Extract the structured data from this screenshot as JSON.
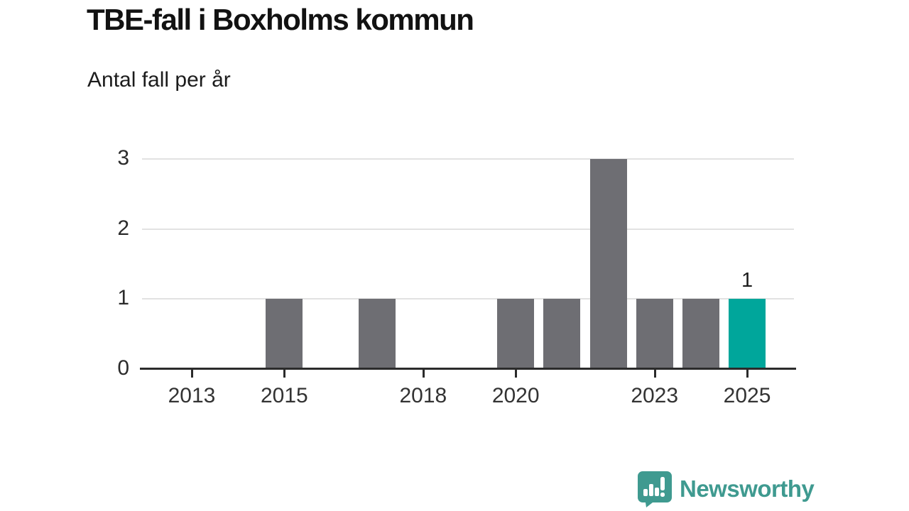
{
  "header": {
    "title": "TBE-fall i Boxholms kommun",
    "subtitle": "Antal fall per år"
  },
  "chart_data": {
    "type": "bar",
    "title": "TBE-fall i Boxholms kommun",
    "subtitle": "Antal fall per år",
    "xlabel": "",
    "ylabel": "Antal fall per år",
    "x": [
      2013,
      2014,
      2015,
      2016,
      2017,
      2018,
      2019,
      2020,
      2021,
      2022,
      2023,
      2024,
      2025
    ],
    "values": [
      0,
      0,
      1,
      0,
      1,
      0,
      0,
      1,
      1,
      3,
      1,
      1,
      1
    ],
    "highlight_index": 12,
    "ylim": [
      0,
      3
    ],
    "yticks": [
      0,
      1,
      2,
      3
    ],
    "xtick_labels": [
      "2013",
      "2015",
      "2018",
      "2020",
      "2023",
      "2025"
    ],
    "xtick_years": [
      2013,
      2015,
      2018,
      2020,
      2023,
      2025
    ],
    "value_labels": [
      {
        "year": 2025,
        "text": "1"
      }
    ],
    "grid": "horizontal",
    "legend": "none",
    "colors": {
      "bar": "#6e6e73",
      "highlight": "#00a69b",
      "gridline": "#e2e2e2",
      "axis": "#2b2b2b",
      "tick_text": "#333333"
    }
  },
  "branding": {
    "name": "Newsworthy",
    "color": "#3f9a90",
    "icon": "bar-chart-speech-bubble-icon"
  }
}
